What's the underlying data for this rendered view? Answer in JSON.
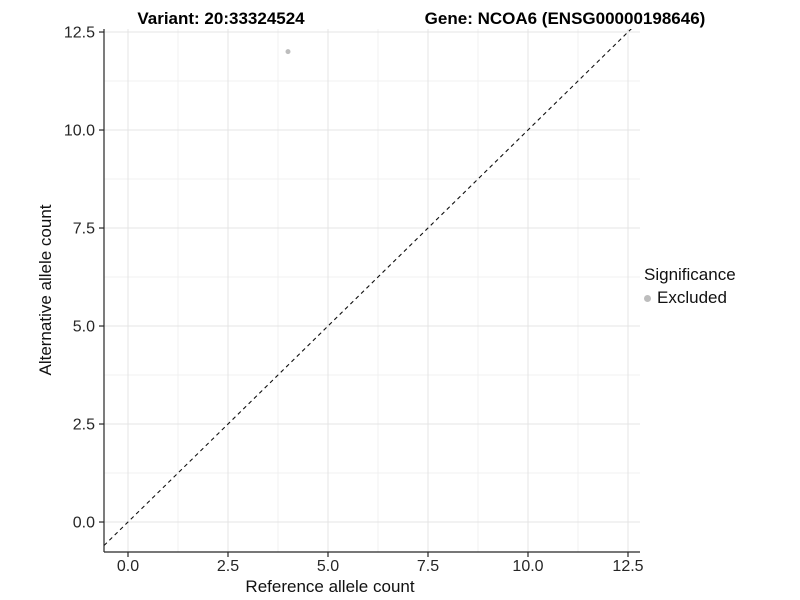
{
  "chart_data": {
    "type": "scatter",
    "title_left": "Variant: 20:33324524",
    "title_right": "Gene: NCOA6 (ENSG00000198646)",
    "xlabel": "Reference allele count",
    "ylabel": "Alternative allele count",
    "xlim": [
      -0.6,
      12.8
    ],
    "ylim": [
      -0.765,
      12.577
    ],
    "x_ticks": {
      "values": [
        0,
        2.5,
        5,
        7.5,
        10,
        12.5
      ],
      "labels": [
        "0.0",
        "2.5",
        "5.0",
        "7.5",
        "10.0",
        "12.5"
      ]
    },
    "y_ticks": {
      "values": [
        0,
        2.5,
        5,
        7.5,
        10,
        12.5
      ],
      "labels": [
        "0.0",
        "2.5",
        "5.0",
        "7.5",
        "10.0",
        "12.5"
      ]
    },
    "x_minor_ticks": [
      1.25,
      3.75,
      6.25,
      8.75,
      11.25
    ],
    "y_minor_ticks": [
      1.25,
      3.75,
      6.25,
      8.75,
      11.25
    ],
    "grid": true,
    "series": [
      {
        "name": "Excluded",
        "marker": "circle",
        "color": "#bdbdbd",
        "point_radius": 2.5,
        "points": [
          {
            "x": 4,
            "y": 12
          }
        ]
      }
    ],
    "reference_line": {
      "slope": 1,
      "intercept": 0,
      "style": "dashed",
      "color": "#111111"
    },
    "legend": {
      "title": "Significance",
      "position": "right",
      "items": [
        {
          "label": "Excluded",
          "color": "#bdbdbd",
          "marker": "circle"
        }
      ]
    },
    "colors": {
      "grid_major": "#e4e4e4",
      "grid_minor": "#f1f1f1",
      "axis_line": "#262626",
      "tick_mark": "#262626",
      "tick_label": "#262626",
      "background": "#ffffff"
    }
  }
}
